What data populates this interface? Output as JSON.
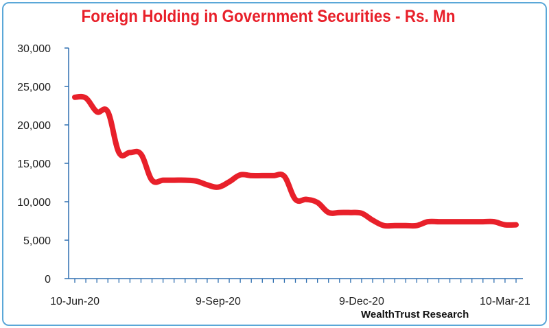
{
  "chart_data": {
    "type": "line",
    "title": "Foreign Holding in Government Securities - Rs. Mn",
    "source": "WealthTrust Research",
    "xlabel": "",
    "ylabel": "",
    "ylim": [
      0,
      30000
    ],
    "yticks": [
      0,
      5000,
      10000,
      15000,
      20000,
      25000,
      30000
    ],
    "ytick_labels": [
      "0",
      "5,000",
      "10,000",
      "15,000",
      "20,000",
      "25,000",
      "30,000"
    ],
    "x_labels": [
      {
        "index": 0,
        "label": "10-Jun-20"
      },
      {
        "index": 13,
        "label": "9-Sep-20"
      },
      {
        "index": 26,
        "label": "9-Dec-20"
      },
      {
        "index": 39,
        "label": "10-Mar-21"
      }
    ],
    "x_count": 41,
    "grid": false,
    "line_color": "#e8202a",
    "series": [
      {
        "values": [
          23600,
          23500,
          21700,
          21700,
          16400,
          16400,
          16200,
          12800,
          12800,
          12800,
          12800,
          12700,
          12200,
          11900,
          12600,
          13500,
          13400,
          13400,
          13400,
          13300,
          10300,
          10300,
          9900,
          8600,
          8600,
          8600,
          8500,
          7600,
          6900,
          6900,
          6900,
          6900,
          7400,
          7400,
          7400,
          7400,
          7400,
          7400,
          7400,
          7000,
          7000
        ]
      }
    ]
  }
}
